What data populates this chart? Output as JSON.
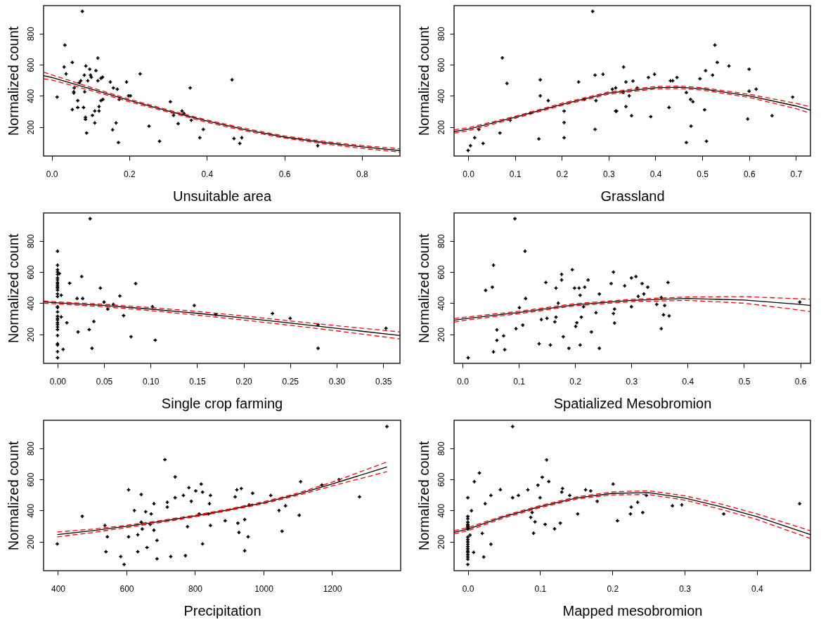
{
  "chart_data": [
    {
      "type": "scatter",
      "xlabel": "Unsuitable area",
      "ylabel": "Normalized count",
      "xlim": [
        -0.021,
        0.898
      ],
      "ylim": [
        13,
        980
      ],
      "xticks": [
        {
          "value": 0,
          "label": "0.0"
        },
        {
          "value": 0.2,
          "label": "0.2"
        },
        {
          "value": 0.4,
          "label": "0.4"
        },
        {
          "value": 0.6,
          "label": "0.6"
        },
        {
          "value": 0.8,
          "label": "0.8"
        }
      ],
      "yticks": [
        200,
        400,
        600,
        800
      ],
      "series": [
        {
          "color": "#000000",
          "marker": "cross",
          "x": [
            0.079,
            0.034,
            0.032,
            0.037,
            0.053,
            0.014,
            0.053,
            0.057,
            0.057,
            0.058,
            0.067,
            0.067,
            0.071,
            0.075,
            0.082,
            0.084,
            0.088,
            0.085,
            0.087,
            0.087,
            0.09,
            0.093,
            0.098,
            0.1,
            0.102,
            0.105,
            0.111,
            0.111,
            0.114,
            0.119,
            0.119,
            0.122,
            0.122,
            0.127,
            0.131,
            0.127,
            0.132,
            0.151,
            0.159,
            0.157,
            0.166,
            0.169,
            0.172,
            0.174,
            0.193,
            0.198,
            0.203,
            0.228,
            0.251,
            0.278,
            0.306,
            0.314,
            0.326,
            0.336,
            0.341,
            0.357,
            0.36,
            0.382,
            0.391,
            0.465,
            0.47,
            0.485,
            0.49,
            0.686
          ],
          "values": [
            943,
            726,
            585,
            541,
            615,
            392,
            312,
            426,
            418,
            451,
            369,
            325,
            484,
            497,
            325,
            533,
            592,
            426,
            262,
            249,
            161,
            497,
            571,
            533,
            520,
            274,
            303,
            226,
            562,
            643,
            497,
            331,
            303,
            513,
            520,
            369,
            377,
            489,
            451,
            182,
            226,
            443,
            100,
            377,
            489,
            400,
            400,
            541,
            205,
            108,
            362,
            274,
            221,
            303,
            287,
            451,
            243,
            131,
            184,
            503,
            125,
            94,
            131,
            79
          ]
        },
        {
          "type": "line",
          "color": "#000000",
          "line_style": "solid",
          "x": [
            -0.021,
            0,
            0.1,
            0.2,
            0.3,
            0.4,
            0.5,
            0.6,
            0.7,
            0.8,
            0.898
          ],
          "values": [
            530,
            518,
            445,
            370,
            303,
            238,
            182,
            135,
            100,
            72,
            48
          ]
        },
        {
          "type": "line",
          "color": "#ff0000",
          "line_style": "dashed",
          "x": [
            -0.021,
            0,
            0.1,
            0.2,
            0.3,
            0.4,
            0.5,
            0.6,
            0.7,
            0.8,
            0.898
          ],
          "values": [
            552,
            535,
            455,
            378,
            310,
            245,
            190,
            142,
            108,
            80,
            60
          ]
        },
        {
          "type": "line",
          "color": "#ff0000",
          "line_style": "dashed",
          "x": [
            -0.021,
            0,
            0.1,
            0.2,
            0.3,
            0.4,
            0.5,
            0.6,
            0.7,
            0.8,
            0.898
          ],
          "values": [
            510,
            502,
            435,
            362,
            296,
            230,
            174,
            128,
            92,
            62,
            38
          ]
        }
      ]
    },
    {
      "type": "scatter",
      "xlabel": "Grassland",
      "ylabel": "Normalized count",
      "xlim": [
        -0.03,
        0.731
      ],
      "ylim": [
        13,
        980
      ],
      "xticks": [
        {
          "value": 0,
          "label": "0.0"
        },
        {
          "value": 0.1,
          "label": "0.1"
        },
        {
          "value": 0.2,
          "label": "0.2"
        },
        {
          "value": 0.3,
          "label": "0.3"
        },
        {
          "value": 0.4,
          "label": "0.4"
        },
        {
          "value": 0.5,
          "label": "0.5"
        },
        {
          "value": 0.6,
          "label": "0.6"
        },
        {
          "value": 0.7,
          "label": "0.7"
        }
      ],
      "yticks": [
        200,
        400,
        600,
        800
      ],
      "series": [
        {
          "color": "#000000",
          "marker": "cross",
          "x": [
            0,
            0.005,
            0.014,
            0.023,
            0.032,
            0.068,
            0.073,
            0.083,
            0.09,
            0.133,
            0.151,
            0.154,
            0.154,
            0.171,
            0.205,
            0.205,
            0.205,
            0.236,
            0.248,
            0.266,
            0.271,
            0.271,
            0.273,
            0.288,
            0.308,
            0.315,
            0.315,
            0.317,
            0.332,
            0.331,
            0.337,
            0.337,
            0.344,
            0.349,
            0.352,
            0.361,
            0.385,
            0.39,
            0.398,
            0.429,
            0.432,
            0.437,
            0.446,
            0.466,
            0.466,
            0.475,
            0.476,
            0.48,
            0.495,
            0.505,
            0.507,
            0.509,
            0.522,
            0.527,
            0.532,
            0.557,
            0.597,
            0.6,
            0.6,
            0.615,
            0.649,
            0.693
          ],
          "values": [
            49,
            79,
            131,
            184,
            94,
            161,
            644,
            480,
            243,
            289,
            123,
            503,
            400,
            369,
            302,
            228,
            131,
            489,
            377,
            943,
            533,
            184,
            369,
            539,
            443,
            451,
            302,
            302,
            585,
            421,
            489,
            331,
            400,
            272,
            495,
            451,
            518,
            266,
            539,
            325,
            497,
            497,
            518,
            421,
            100,
            377,
            205,
            362,
            510,
            310,
            562,
            108,
            533,
            726,
            615,
            592,
            251,
            571,
            430,
            443,
            272,
            392
          ]
        },
        {
          "type": "line",
          "color": "#000000",
          "line_style": "solid",
          "x": [
            -0.03,
            0,
            0.1,
            0.2,
            0.3,
            0.4,
            0.45,
            0.5,
            0.6,
            0.7,
            0.731
          ],
          "values": [
            170,
            185,
            262,
            345,
            418,
            452,
            455,
            445,
            400,
            335,
            308
          ]
        },
        {
          "type": "line",
          "color": "#ff0000",
          "line_style": "dashed",
          "x": [
            -0.03,
            0,
            0.1,
            0.2,
            0.3,
            0.4,
            0.45,
            0.5,
            0.6,
            0.7,
            0.731
          ],
          "values": [
            182,
            195,
            268,
            352,
            425,
            460,
            463,
            453,
            410,
            352,
            330
          ]
        },
        {
          "type": "line",
          "color": "#ff0000",
          "line_style": "dashed",
          "x": [
            -0.03,
            0,
            0.1,
            0.2,
            0.3,
            0.4,
            0.45,
            0.5,
            0.6,
            0.7,
            0.731
          ],
          "values": [
            160,
            175,
            255,
            338,
            410,
            444,
            447,
            437,
            390,
            318,
            288
          ]
        }
      ]
    },
    {
      "type": "scatter",
      "xlabel": "Single crop farming",
      "ylabel": "Normalized count",
      "xlim": [
        -0.015,
        0.368
      ],
      "ylim": [
        13,
        980
      ],
      "xticks": [
        {
          "value": 0,
          "label": "0.00"
        },
        {
          "value": 0.05,
          "label": "0.05"
        },
        {
          "value": 0.1,
          "label": "0.10"
        },
        {
          "value": 0.15,
          "label": "0.15"
        },
        {
          "value": 0.2,
          "label": "0.20"
        },
        {
          "value": 0.25,
          "label": "0.25"
        },
        {
          "value": 0.3,
          "label": "0.30"
        },
        {
          "value": 0.35,
          "label": "0.35"
        }
      ],
      "yticks": [
        200,
        400,
        600,
        800
      ],
      "series": [
        {
          "color": "#000000",
          "marker": "cross",
          "x": [
            0,
            0,
            0,
            0,
            0,
            0,
            0,
            0,
            0,
            0,
            0,
            0,
            0,
            0,
            0,
            0,
            0,
            0,
            0,
            0,
            0,
            0,
            0,
            0,
            0,
            0,
            0,
            0,
            0,
            0,
            0.002,
            0.004,
            0.004,
            0.006,
            0.01,
            0.013,
            0.021,
            0.022,
            0.026,
            0.027,
            0.034,
            0.035,
            0.037,
            0.039,
            0.046,
            0.05,
            0.054,
            0.06,
            0.067,
            0.071,
            0.079,
            0.084,
            0.102,
            0.105,
            0.147,
            0.17,
            0.231,
            0.25,
            0.28,
            0.28,
            0.353
          ],
          "values": [
            734,
            644,
            615,
            601,
            585,
            562,
            549,
            533,
            524,
            513,
            503,
            497,
            484,
            459,
            443,
            377,
            372,
            344,
            316,
            303,
            292,
            274,
            262,
            246,
            230,
            192,
            139,
            131,
            88,
            49,
            590,
            451,
            312,
            103,
            274,
            528,
            430,
            215,
            571,
            430,
            230,
            943,
            110,
            282,
            497,
            407,
            362,
            392,
            446,
            320,
            184,
            526,
            377,
            162,
            385,
            328,
            333,
            303,
            261,
            110,
            238
          ]
        },
        {
          "type": "line",
          "color": "#000000",
          "line_style": "solid",
          "x": [
            -0.015,
            0,
            0.05,
            0.1,
            0.15,
            0.2,
            0.25,
            0.3,
            0.368
          ],
          "values": [
            408,
            402,
            385,
            362,
            335,
            305,
            272,
            238,
            192
          ]
        },
        {
          "type": "line",
          "color": "#ff0000",
          "line_style": "dashed",
          "x": [
            -0.015,
            0,
            0.05,
            0.1,
            0.15,
            0.2,
            0.25,
            0.3,
            0.368
          ],
          "values": [
            415,
            408,
            393,
            372,
            347,
            318,
            286,
            255,
            215
          ]
        },
        {
          "type": "line",
          "color": "#ff0000",
          "line_style": "dashed",
          "x": [
            -0.015,
            0,
            0.05,
            0.1,
            0.15,
            0.2,
            0.25,
            0.3,
            0.368
          ],
          "values": [
            400,
            395,
            377,
            352,
            323,
            292,
            258,
            222,
            170
          ]
        }
      ]
    },
    {
      "type": "scatter",
      "xlabel": "Spatialized Mesobromion",
      "ylabel": "Normalized count",
      "xlim": [
        -0.015,
        0.618
      ],
      "ylim": [
        13,
        980
      ],
      "xticks": [
        {
          "value": 0,
          "label": "0.0"
        },
        {
          "value": 0.1,
          "label": "0.1"
        },
        {
          "value": 0.2,
          "label": "0.2"
        },
        {
          "value": 0.3,
          "label": "0.3"
        },
        {
          "value": 0.4,
          "label": "0.4"
        },
        {
          "value": 0.5,
          "label": "0.5"
        },
        {
          "value": 0.6,
          "label": "0.6"
        }
      ],
      "yticks": [
        200,
        400,
        600,
        800
      ],
      "series": [
        {
          "color": "#000000",
          "marker": "cross",
          "x": [
            0.01,
            0.041,
            0.053,
            0.055,
            0.055,
            0.061,
            0.061,
            0.073,
            0.075,
            0.093,
            0.095,
            0.101,
            0.107,
            0.111,
            0.112,
            0.136,
            0.14,
            0.148,
            0.15,
            0.156,
            0.164,
            0.166,
            0.166,
            0.17,
            0.176,
            0.176,
            0.179,
            0.189,
            0.195,
            0.199,
            0.201,
            0.203,
            0.207,
            0.209,
            0.209,
            0.211,
            0.215,
            0.217,
            0.223,
            0.229,
            0.237,
            0.243,
            0.243,
            0.264,
            0.268,
            0.268,
            0.27,
            0.27,
            0.288,
            0.3,
            0.3,
            0.308,
            0.312,
            0.319,
            0.322,
            0.329,
            0.345,
            0.353,
            0.353,
            0.357,
            0.359,
            0.365,
            0.367,
            0.599
          ],
          "values": [
            49,
            482,
            503,
            644,
            87,
            228,
            161,
            190,
            101,
            943,
            236,
            371,
            259,
            734,
            430,
            139,
            295,
            533,
            303,
            131,
            280,
            497,
            310,
            400,
            585,
            549,
            184,
            110,
            615,
            497,
            251,
            274,
            497,
            451,
            131,
            310,
            377,
            503,
            549,
            215,
            339,
            459,
            110,
            526,
            600,
            333,
            362,
            272,
            512,
            562,
            377,
            571,
            444,
            526,
            459,
            503,
            392,
            236,
            436,
            325,
            385,
            533,
            318,
            407
          ]
        },
        {
          "type": "line",
          "color": "#000000",
          "line_style": "solid",
          "x": [
            -0.015,
            0,
            0.1,
            0.2,
            0.3,
            0.4,
            0.5,
            0.6,
            0.618
          ],
          "values": [
            290,
            298,
            340,
            390,
            418,
            430,
            420,
            392,
            385
          ]
        },
        {
          "type": "line",
          "color": "#ff0000",
          "line_style": "dashed",
          "x": [
            -0.015,
            0,
            0.1,
            0.2,
            0.3,
            0.4,
            0.5,
            0.6,
            0.618
          ],
          "values": [
            302,
            308,
            348,
            397,
            425,
            440,
            442,
            428,
            425
          ]
        },
        {
          "type": "line",
          "color": "#ff0000",
          "line_style": "dashed",
          "x": [
            -0.015,
            0,
            0.1,
            0.2,
            0.3,
            0.4,
            0.5,
            0.6,
            0.618
          ],
          "values": [
            278,
            288,
            332,
            383,
            410,
            418,
            400,
            355,
            345
          ]
        }
      ]
    },
    {
      "type": "scatter",
      "xlabel": "Precipitation",
      "ylabel": "Normalized count",
      "xlim": [
        358,
        1400
      ],
      "ylim": [
        13,
        980
      ],
      "xticks": [
        400,
        600,
        800,
        1000,
        1200
      ],
      "yticks": [
        200,
        400,
        600,
        800
      ],
      "series": [
        {
          "color": "#000000",
          "marker": "cross",
          "x": [
            398,
            471,
            537,
            540,
            544,
            583,
            593,
            606,
            606,
            623,
            633,
            633,
            643,
            643,
            646,
            656,
            660,
            669,
            672,
            680,
            680,
            689,
            689,
            712,
            719,
            719,
            729,
            742,
            742,
            766,
            772,
            778,
            782,
            789,
            802,
            812,
            818,
            822,
            822,
            839,
            842,
            845,
            845,
            888,
            917,
            922,
            925,
            928,
            935,
            945,
            945,
            955,
            958,
            968,
            1021,
            1045,
            1054,
            1064,
            1104,
            1108,
            1170,
            1220,
            1280,
            1360
          ],
          "values": [
            185,
            363,
            304,
            135,
            231,
            104,
            53,
            533,
            231,
            400,
            244,
            135,
            503,
            325,
            281,
            392,
            162,
            311,
            378,
            444,
            273,
            208,
            89,
            727,
            453,
            422,
            104,
            616,
            482,
            497,
            110,
            296,
            547,
            459,
            526,
            378,
            570,
            518,
            185,
            378,
            444,
            497,
            304,
            334,
            488,
            533,
            319,
            259,
            541,
            342,
            141,
            231,
            436,
            511,
            497,
            400,
            267,
            430,
            369,
            585,
            564,
            599,
            488,
            940
          ]
        },
        {
          "type": "line",
          "color": "#000000",
          "line_style": "solid",
          "x": [
            398,
            500,
            600,
            700,
            800,
            900,
            1000,
            1100,
            1200,
            1360
          ],
          "values": [
            245,
            270,
            298,
            330,
            365,
            405,
            450,
            505,
            570,
            680
          ]
        },
        {
          "type": "line",
          "color": "#ff0000",
          "line_style": "dashed",
          "x": [
            398,
            500,
            600,
            700,
            800,
            900,
            1000,
            1100,
            1200,
            1360
          ],
          "values": [
            262,
            280,
            305,
            336,
            370,
            410,
            456,
            512,
            582,
            712
          ]
        },
        {
          "type": "line",
          "color": "#ff0000",
          "line_style": "dashed",
          "x": [
            398,
            500,
            600,
            700,
            800,
            900,
            1000,
            1100,
            1200,
            1360
          ],
          "values": [
            230,
            258,
            290,
            323,
            359,
            400,
            444,
            497,
            558,
            650
          ]
        }
      ]
    },
    {
      "type": "scatter",
      "xlabel": "Mapped mesobromion",
      "ylabel": "Normalized count",
      "xlim": [
        -0.019,
        0.474
      ],
      "ylim": [
        13,
        980
      ],
      "xticks": [
        {
          "value": 0,
          "label": "0.0"
        },
        {
          "value": 0.1,
          "label": "0.1"
        },
        {
          "value": 0.2,
          "label": "0.2"
        },
        {
          "value": 0.3,
          "label": "0.3"
        },
        {
          "value": 0.4,
          "label": "0.4"
        }
      ],
      "yticks": [
        200,
        400,
        600,
        800
      ],
      "series": [
        {
          "color": "#000000",
          "marker": "cross",
          "x": [
            0,
            0,
            0,
            0,
            0,
            0,
            0,
            0,
            0,
            0,
            0,
            0,
            0,
            0,
            0,
            0,
            0,
            0,
            0,
            0,
            0,
            0.005,
            0.003,
            0.008,
            0.009,
            0.016,
            0.02,
            0.022,
            0.024,
            0.032,
            0.032,
            0.045,
            0.062,
            0.062,
            0.07,
            0.083,
            0.087,
            0.089,
            0.091,
            0.093,
            0.097,
            0.1,
            0.103,
            0.107,
            0.109,
            0.112,
            0.12,
            0.128,
            0.13,
            0.131,
            0.141,
            0.152,
            0.163,
            0.17,
            0.179,
            0.201,
            0.207,
            0.225,
            0.226,
            0.235,
            0.242,
            0.247,
            0.283,
            0.296,
            0.354,
            0.459
          ],
          "values": [
            482,
            362,
            347,
            325,
            310,
            303,
            295,
            288,
            280,
            229,
            213,
            198,
            183,
            168,
            153,
            139,
            131,
            116,
            101,
            87,
            53,
            399,
            242,
            131,
            585,
            641,
            253,
            101,
            444,
            497,
            183,
            534,
            482,
            940,
            497,
            533,
            356,
            387,
            254,
            327,
            563,
            482,
            614,
            311,
            725,
            586,
            282,
            319,
            518,
            541,
            497,
            378,
            533,
            526,
            459,
            570,
            334,
            378,
            422,
            453,
            387,
            497,
            430,
            436,
            378,
            444
          ]
        },
        {
          "type": "line",
          "color": "#000000",
          "line_style": "solid",
          "x": [
            -0.019,
            0,
            0.05,
            0.1,
            0.15,
            0.2,
            0.25,
            0.3,
            0.35,
            0.4,
            0.474
          ],
          "values": [
            260,
            280,
            360,
            425,
            480,
            510,
            515,
            480,
            425,
            360,
            245
          ]
        },
        {
          "type": "line",
          "color": "#ff0000",
          "line_style": "dashed",
          "x": [
            -0.019,
            0,
            0.05,
            0.1,
            0.15,
            0.2,
            0.25,
            0.3,
            0.35,
            0.4,
            0.474
          ],
          "values": [
            270,
            290,
            367,
            432,
            487,
            520,
            527,
            495,
            442,
            378,
            270
          ]
        },
        {
          "type": "line",
          "color": "#ff0000",
          "line_style": "dashed",
          "x": [
            -0.019,
            0,
            0.05,
            0.1,
            0.15,
            0.2,
            0.25,
            0.3,
            0.35,
            0.4,
            0.474
          ],
          "values": [
            250,
            270,
            352,
            418,
            473,
            500,
            503,
            467,
            408,
            342,
            220
          ]
        }
      ]
    }
  ]
}
